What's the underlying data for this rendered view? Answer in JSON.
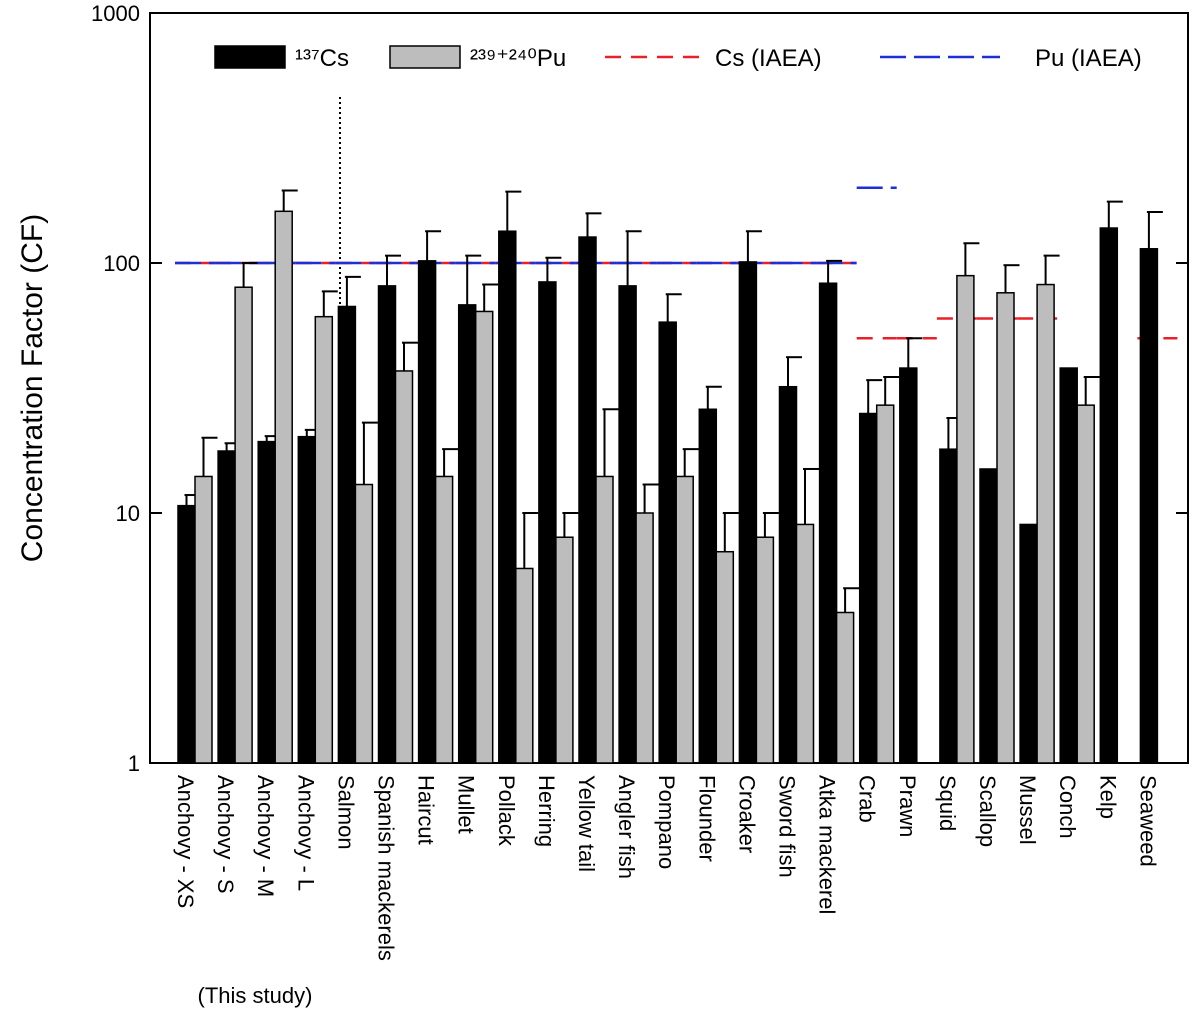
{
  "chart_data": {
    "type": "bar",
    "log_scale": true,
    "y_label": "Concentration Factor (CF)",
    "annotation": "(This study)",
    "categories": [
      "Anchovy - XS",
      "Anchovy - S",
      "Anchovy - M",
      "Anchovy - L",
      "Salmon",
      "Spanish mackerels",
      "Haircut",
      "Mullet",
      "Pollack",
      "Herring",
      "Yellow tail",
      "Angler fish",
      "Pompano",
      "Flounder",
      "Croaker",
      "Sword fish",
      "Atka mackerel",
      "Crab",
      "Prawn",
      "Squid",
      "Scallop",
      "Mussel",
      "Conch",
      "Kelp",
      "Seaweed"
    ],
    "series": [
      {
        "name": "¹³⁷Cs",
        "color": "#000000",
        "values": [
          10.7,
          17.7,
          19.3,
          20.2,
          67,
          81,
          102,
          68,
          134,
          84,
          127,
          81,
          58,
          26,
          101,
          32,
          83,
          25,
          38,
          18,
          15,
          9,
          38,
          138,
          114
        ],
        "errors": [
          1.1,
          1.3,
          1,
          1.3,
          21,
          26,
          32,
          39,
          59,
          21,
          31,
          53,
          17,
          6,
          33,
          10,
          19,
          9,
          12,
          6,
          null,
          null,
          null,
          38,
          46
        ]
      },
      {
        "name": "²³⁹⁺²⁴⁰Pu",
        "color": "#bdbdbd",
        "values": [
          14,
          80,
          161,
          61,
          13,
          37,
          14,
          64,
          6,
          8,
          14,
          10,
          14,
          7,
          8,
          9,
          4,
          27,
          null,
          89,
          76,
          82,
          27,
          null,
          null
        ],
        "errors": [
          6,
          20,
          34,
          16,
          10,
          11,
          4,
          18,
          4,
          2,
          12,
          3,
          4,
          3,
          2,
          6,
          1,
          8,
          null,
          31,
          22,
          25,
          8,
          null,
          null
        ]
      }
    ],
    "reference_series": [
      {
        "name": "Cs (IAEA)",
        "color": "#e8202a",
        "values": [
          100,
          100,
          100,
          100,
          100,
          100,
          100,
          100,
          100,
          100,
          100,
          100,
          100,
          100,
          100,
          100,
          100,
          50,
          50,
          60,
          60,
          60,
          null,
          null,
          50
        ]
      },
      {
        "name": "Pu (IAEA)",
        "color": "#1f2fd6",
        "values": [
          100,
          100,
          100,
          100,
          100,
          100,
          100,
          100,
          100,
          100,
          100,
          100,
          100,
          100,
          100,
          100,
          100,
          200,
          null,
          null,
          null,
          null,
          null,
          null,
          null
        ]
      }
    ],
    "ylim": [
      1,
      1000
    ],
    "yticks": [
      1,
      10,
      100,
      1000
    ]
  }
}
